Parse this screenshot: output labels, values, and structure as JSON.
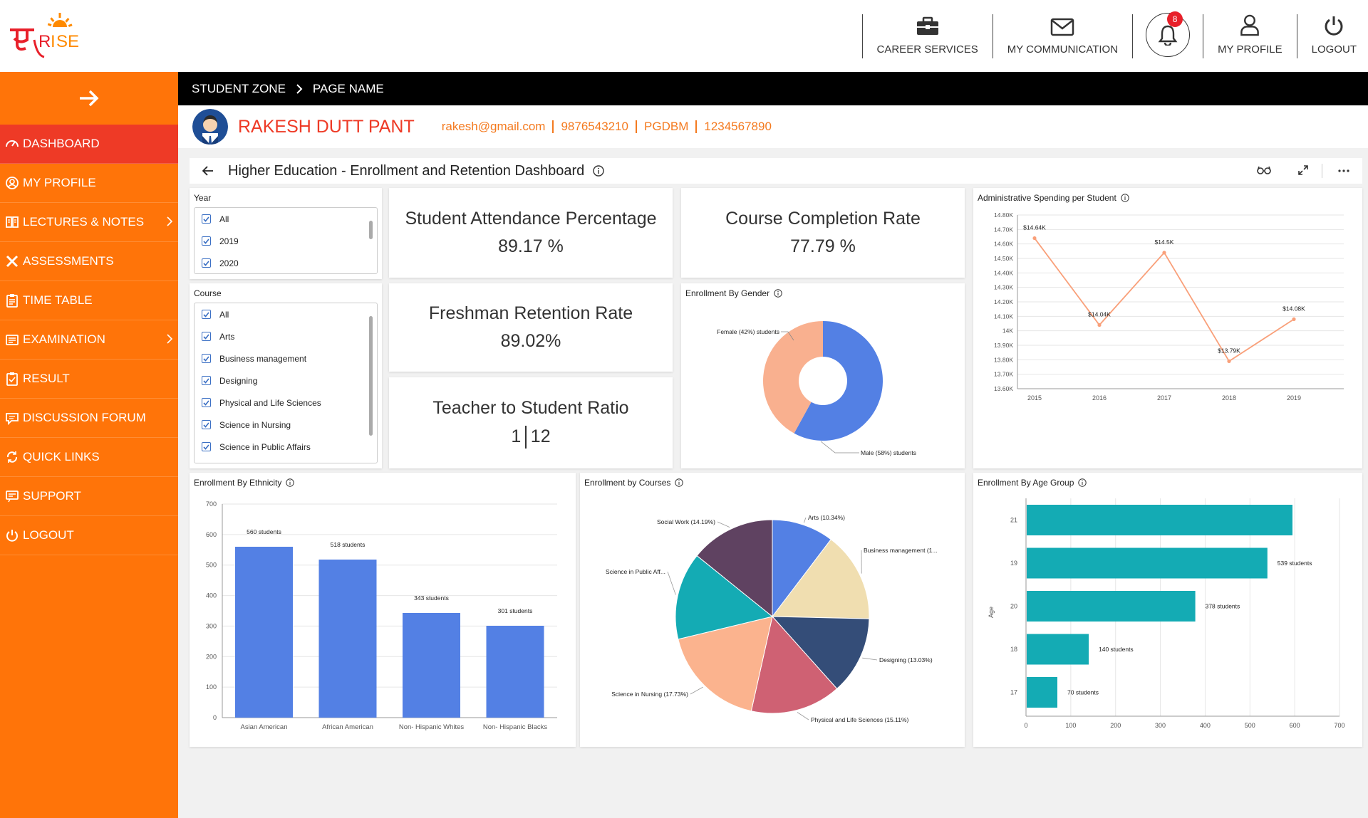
{
  "topnav": {
    "career_services": "CAREER SERVICES",
    "my_communication": "MY COMMUNICATION",
    "notification_count": "8",
    "my_profile": "MY PROFILE",
    "logout": "LOGOUT"
  },
  "sidebar": {
    "items": [
      {
        "label": "DASHBOARD",
        "icon": "speedometer-icon"
      },
      {
        "label": "MY PROFILE",
        "icon": "user-circle-icon"
      },
      {
        "label": "LECTURES & NOTES",
        "icon": "book-icon"
      },
      {
        "label": "ASSESSMENTS",
        "icon": "tools-icon"
      },
      {
        "label": "TIME TABLE",
        "icon": "clipboard-icon"
      },
      {
        "label": "EXAMINATION",
        "icon": "exam-icon"
      },
      {
        "label": "RESULT",
        "icon": "clipboard-check-icon"
      },
      {
        "label": "DISCUSSION FORUM",
        "icon": "chat-icon"
      },
      {
        "label": "QUICK LINKS",
        "icon": "refresh-link-icon"
      },
      {
        "label": "SUPPORT",
        "icon": "support-icon"
      },
      {
        "label": "LOGOUT",
        "icon": "power-icon"
      }
    ]
  },
  "breadcrumb": {
    "zone": "STUDENT ZONE",
    "page": "PAGE NAME"
  },
  "user": {
    "name": "RAKESH DUTT PANT",
    "email": "rakesh@gmail.com",
    "phone": "9876543210",
    "program": "PGDBM",
    "id": "1234567890"
  },
  "dashboard": {
    "title": "Higher Education - Enrollment and Retention Dashboard",
    "filters": {
      "year": {
        "label": "Year",
        "options": [
          "All",
          "2019",
          "2020"
        ]
      },
      "course": {
        "label": "Course",
        "options": [
          "All",
          "Arts",
          "Business management",
          "Designing",
          "Physical and Life Sciences",
          "Science in Nursing",
          "Science in Public Affairs"
        ]
      }
    },
    "kpis": {
      "attendance": {
        "label": "Student Attendance Percentage",
        "value": "89.17 %"
      },
      "completion": {
        "label": "Course Completion Rate",
        "value": "77.79 %"
      },
      "retention": {
        "label": "Freshman Retention Rate",
        "value": "89.02%"
      },
      "ratio": {
        "label": "Teacher to Student Ratio",
        "left": "1",
        "right": "12"
      }
    },
    "panel_titles": {
      "admin": "Administrative Spending per Student",
      "gender": "Enrollment By Gender",
      "ethnicity": "Enrollment By Ethnicity",
      "courses": "Enrollment by Courses",
      "age": "Enrollment By Age Group"
    }
  },
  "colors": {
    "sidebar": "#ff7409",
    "active": "#ee3a26",
    "accent_text": "#f47a1f",
    "bar_blue": "#5380e4",
    "bar_teal": "#14abb4",
    "line_orange": "#f9a07a"
  },
  "chart_data": [
    {
      "type": "line",
      "title": "Administrative Spending per Student",
      "x": [
        "2015",
        "2016",
        "2017",
        "2018",
        "2019"
      ],
      "series": [
        {
          "values": [
            14640,
            14040,
            14540,
            13790,
            14080
          ]
        }
      ],
      "data_labels": [
        "$14.64K",
        "$14.04K",
        "$14.5K",
        "$13.79K",
        "$14.08K"
      ],
      "yticks": [
        "13.60K",
        "13.70K",
        "13.80K",
        "13.90K",
        "14K",
        "14.10K",
        "14.20K",
        "14.30K",
        "14.40K",
        "14.50K",
        "14.60K",
        "14.70K",
        "14.80K"
      ],
      "ylim": [
        13600,
        14800
      ],
      "grid": true
    },
    {
      "type": "pie",
      "title": "Enrollment By Gender",
      "donut": true,
      "slices": [
        {
          "label": "Male (58%) students",
          "value": 58,
          "color": "#5380e4"
        },
        {
          "label": "Female (42%) students",
          "value": 42,
          "color": "#f9b08f"
        }
      ]
    },
    {
      "type": "bar",
      "title": "Enrollment By Ethnicity",
      "categories": [
        "Asian American",
        "African American",
        "Non- Hispanic Whites",
        "Non- Hispanic Blacks"
      ],
      "values": [
        560,
        518,
        343,
        301
      ],
      "data_labels": [
        "560 students",
        "518 students",
        "343 students",
        "301 students"
      ],
      "ylim": [
        0,
        700
      ],
      "yticks": [
        "0",
        "100",
        "200",
        "300",
        "400",
        "500",
        "600",
        "700"
      ]
    },
    {
      "type": "pie",
      "title": "Enrollment by Courses",
      "slices": [
        {
          "label": "Arts (10.34%)",
          "value": 10.34,
          "color": "#5380e4"
        },
        {
          "label": "Business management (1...",
          "value": 15.02,
          "color": "#f0deb0"
        },
        {
          "label": "Designing (13.03%)",
          "value": 13.03,
          "color": "#344d78"
        },
        {
          "label": "Physical and Life Sciences (15.11%)",
          "value": 15.11,
          "color": "#cf6173"
        },
        {
          "label": "Science in Nursing (17.73%)",
          "value": 17.73,
          "color": "#fbb38e"
        },
        {
          "label": "Science in Public Aff...",
          "value": 14.58,
          "color": "#14abb4"
        },
        {
          "label": "Social Work (14.19%)",
          "value": 14.19,
          "color": "#5f4261"
        }
      ]
    },
    {
      "type": "bar",
      "orientation": "horizontal",
      "title": "Enrollment By Age Group",
      "ylabel": "Age",
      "categories": [
        "21",
        "19",
        "20",
        "18",
        "17"
      ],
      "values": [
        595,
        539,
        378,
        140,
        70
      ],
      "data_labels": [
        "",
        "539 students",
        "378 students",
        "140 students",
        "70 students"
      ],
      "xlim": [
        0,
        700
      ],
      "xticks": [
        "0",
        "100",
        "200",
        "300",
        "400",
        "500",
        "600",
        "700"
      ]
    }
  ]
}
